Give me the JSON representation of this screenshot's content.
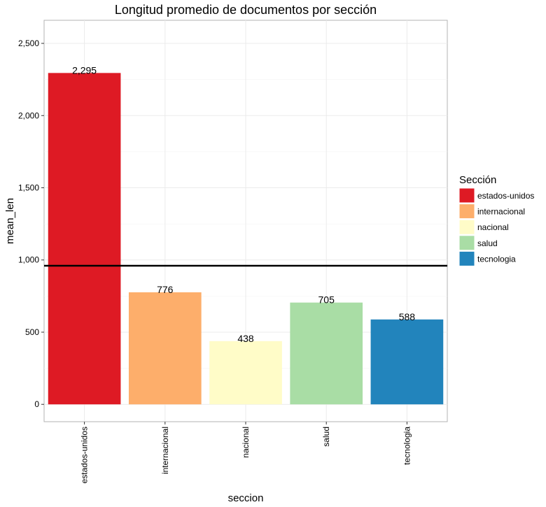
{
  "chart_data": {
    "type": "bar",
    "title": "Longitud promedio de documentos por sección",
    "xlabel": "seccion",
    "ylabel": "mean_len",
    "categories": [
      "estados-unidos",
      "internacional",
      "nacional",
      "salud",
      "tecnologia"
    ],
    "values": [
      2295,
      776,
      438,
      705,
      588
    ],
    "value_labels": [
      "2,295",
      "776",
      "438",
      "705",
      "588"
    ],
    "colors": [
      "#DE1A24",
      "#FDAE6B",
      "#FFFCC8",
      "#A9DDA5",
      "#2284BC"
    ],
    "ylim": [
      -120,
      2660
    ],
    "yticks": [
      0,
      500,
      1000,
      1500,
      2000,
      2500
    ],
    "ytick_labels": [
      "0",
      "500",
      "1,000",
      "1,500",
      "2,000",
      "2,500"
    ],
    "reference_line": {
      "y": 960,
      "color": "#000000"
    },
    "grid": true,
    "legend": {
      "title": "Sección",
      "position": "right",
      "entries": [
        "estados-unidos",
        "internacional",
        "nacional",
        "salud",
        "tecnologia"
      ]
    }
  }
}
